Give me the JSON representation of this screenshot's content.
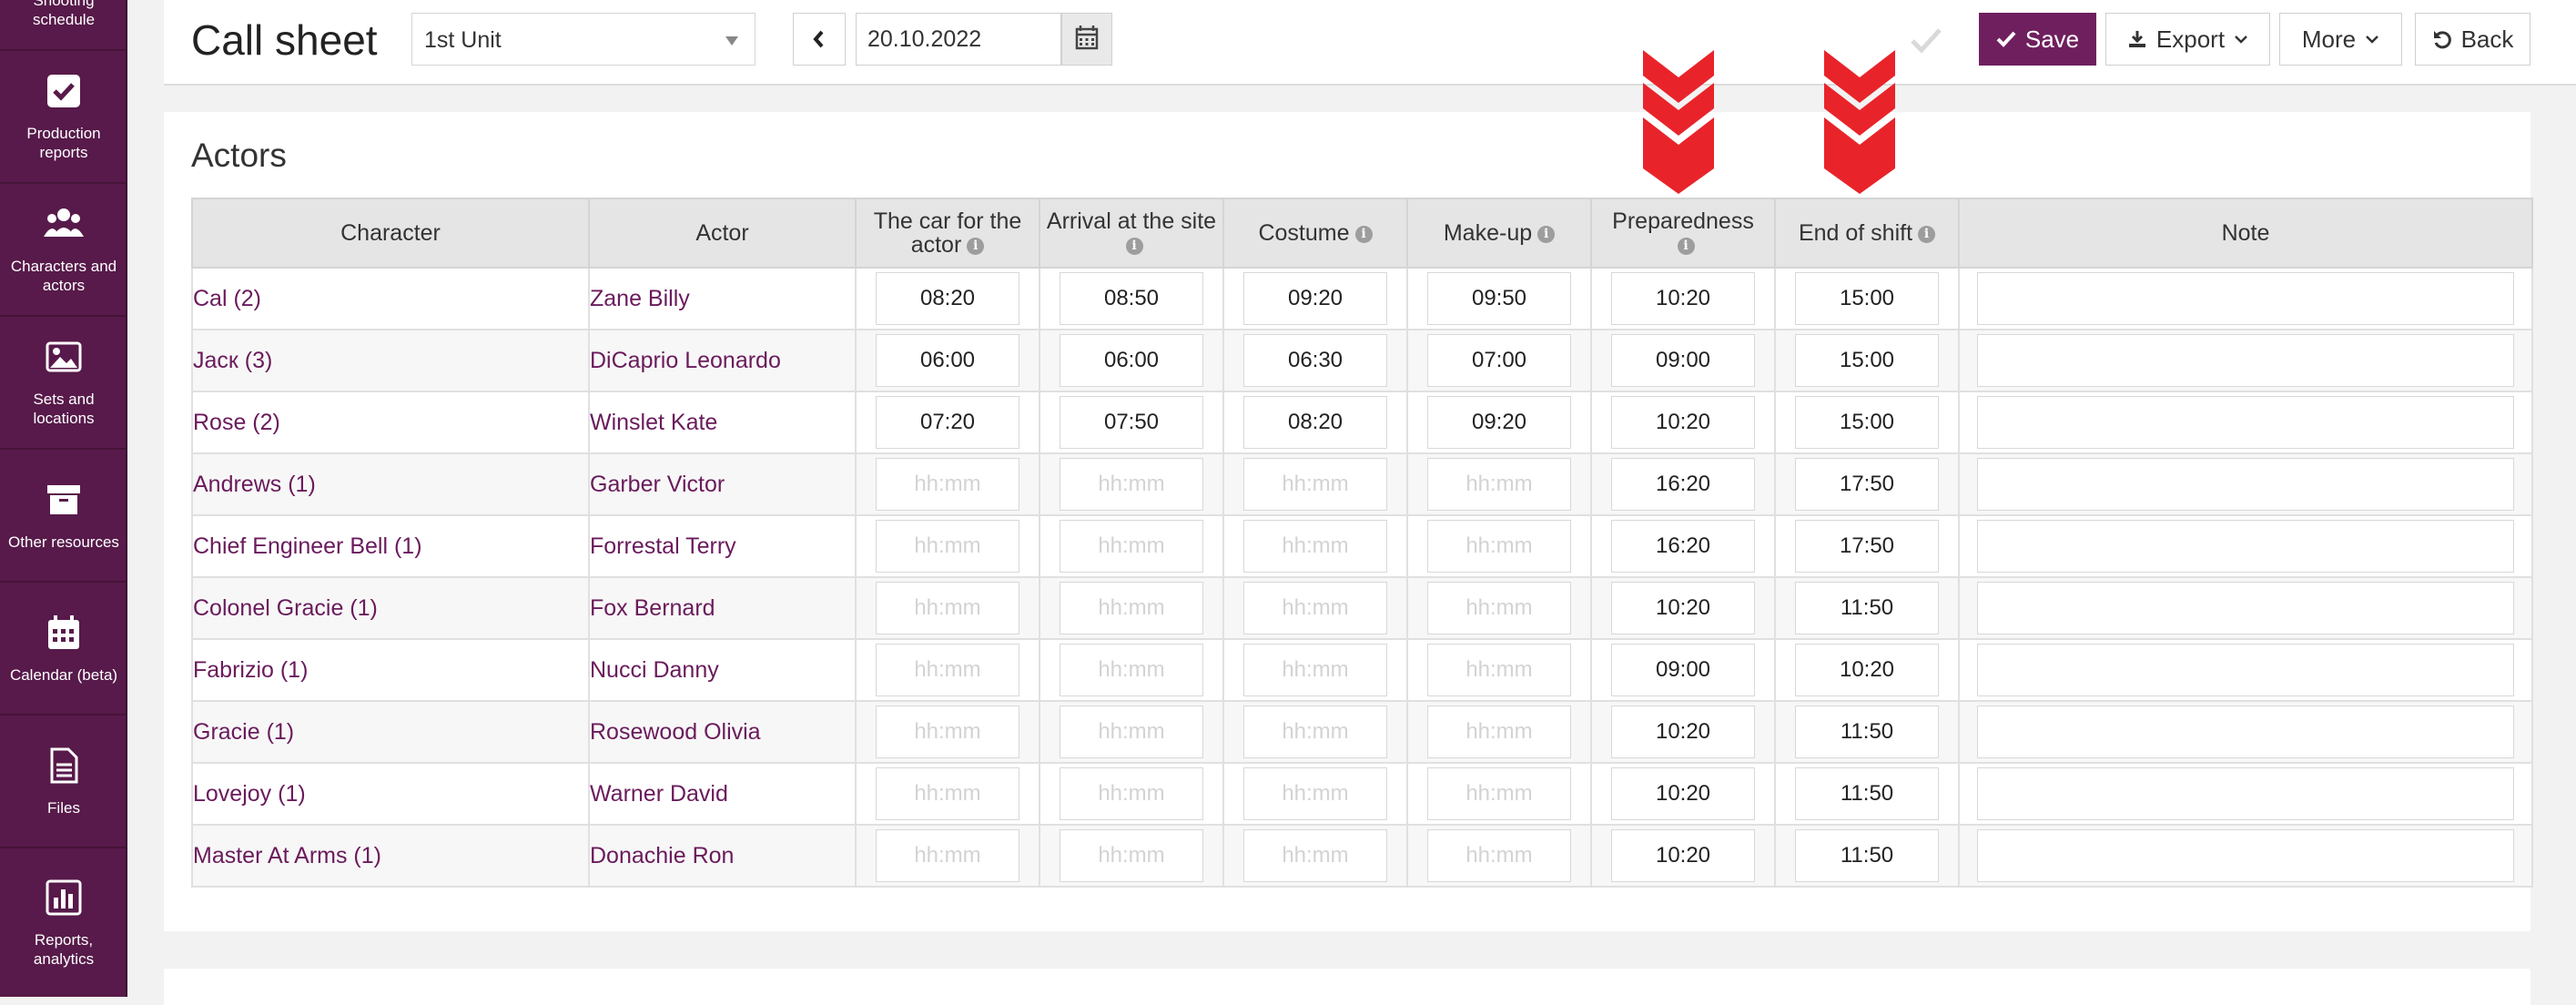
{
  "sidebar": {
    "items": [
      {
        "label": "Shooting schedule",
        "icon": "calendar-check-icon"
      },
      {
        "label": "Production reports",
        "icon": "checkbox-icon"
      },
      {
        "label": "Characters and actors",
        "icon": "users-icon"
      },
      {
        "label": "Sets and locations",
        "icon": "image-icon"
      },
      {
        "label": "Other resources",
        "icon": "archive-icon"
      },
      {
        "label": "Calendar (beta)",
        "icon": "calendar-icon"
      },
      {
        "label": "Files",
        "icon": "file-icon"
      },
      {
        "label": "Reports, analytics",
        "icon": "bar-chart-icon"
      }
    ]
  },
  "header": {
    "title": "Call sheet",
    "unit_select": "1st Unit",
    "date": "20.10.2022",
    "save_label": "Save",
    "export_label": "Export",
    "more_label": "More",
    "back_label": "Back"
  },
  "actors": {
    "title": "Actors",
    "columns": [
      "Character",
      "Actor",
      "The car for the actor",
      "Arrival at the site",
      "Costume",
      "Make-up",
      "Preparedness",
      "End of shift",
      "Note"
    ],
    "placeholder": "hh:mm",
    "rows": [
      {
        "character": "Cal (2)",
        "actor": "Zane Billy",
        "car": "08:20",
        "arrival": "08:50",
        "costume": "09:20",
        "makeup": "09:50",
        "prep": "10:20",
        "end": "15:00"
      },
      {
        "character": "Jacк (3)",
        "actor": "DiCaprio Leonardo",
        "car": "06:00",
        "arrival": "06:00",
        "costume": "06:30",
        "makeup": "07:00",
        "prep": "09:00",
        "end": "15:00"
      },
      {
        "character": "Rose (2)",
        "actor": "Winslet Kate",
        "car": "07:20",
        "arrival": "07:50",
        "costume": "08:20",
        "makeup": "09:20",
        "prep": "10:20",
        "end": "15:00"
      },
      {
        "character": "Andrews (1)",
        "actor": "Garber Victor",
        "car": "",
        "arrival": "",
        "costume": "",
        "makeup": "",
        "prep": "16:20",
        "end": "17:50"
      },
      {
        "character": "Chief Engineer Bell (1)",
        "actor": "Forrestal Terry",
        "car": "",
        "arrival": "",
        "costume": "",
        "makeup": "",
        "prep": "16:20",
        "end": "17:50"
      },
      {
        "character": "Colonel Gracie (1)",
        "actor": "Fox Bernard",
        "car": "",
        "arrival": "",
        "costume": "",
        "makeup": "",
        "prep": "10:20",
        "end": "11:50"
      },
      {
        "character": "Fabrizio (1)",
        "actor": "Nucci Danny",
        "car": "",
        "arrival": "",
        "costume": "",
        "makeup": "",
        "prep": "09:00",
        "end": "10:20"
      },
      {
        "character": "Gracie (1)",
        "actor": "Rosewood Olivia",
        "car": "",
        "arrival": "",
        "costume": "",
        "makeup": "",
        "prep": "10:20",
        "end": "11:50"
      },
      {
        "character": "Lovejoy (1)",
        "actor": "Warner David",
        "car": "",
        "arrival": "",
        "costume": "",
        "makeup": "",
        "prep": "10:20",
        "end": "11:50"
      },
      {
        "character": "Master At Arms (1)",
        "actor": "Donachie Ron",
        "car": "",
        "arrival": "",
        "costume": "",
        "makeup": "",
        "prep": "10:20",
        "end": "11:50"
      }
    ]
  },
  "colors": {
    "brand": "#571a4a",
    "accent": "#6f1f5e",
    "arrow": "#e8242a"
  }
}
